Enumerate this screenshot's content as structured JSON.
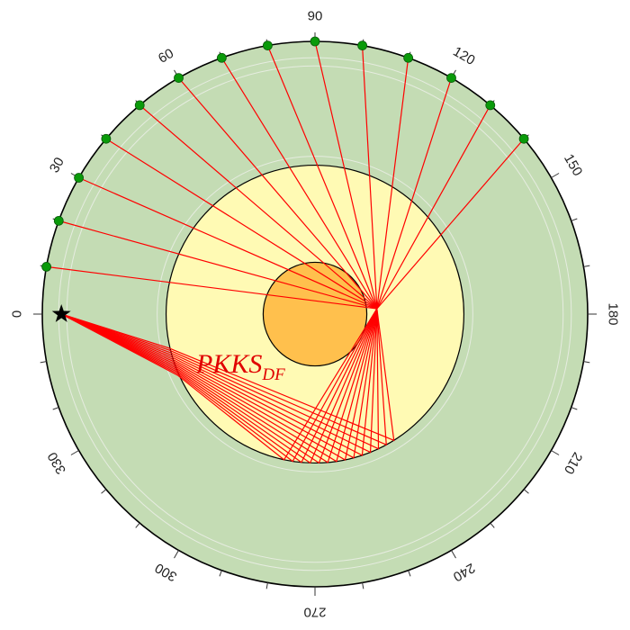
{
  "figure": {
    "phase_name": "PKKS",
    "phase_subscript": "DF",
    "colors": {
      "mantle": "#c4dcb4",
      "outer_core": "#fffab4",
      "inner_core": "#ffc04d",
      "ray": "#ff0000",
      "station": "#0a9a0a",
      "source": "#000000",
      "ring": "#000000",
      "guide_circle": "#e6ece0"
    },
    "icons": {
      "source": "star-icon",
      "station": "circle-icon"
    }
  },
  "chart_data": {
    "type": "polar-ray-diagram",
    "title": "",
    "axis": {
      "tick_labels": [
        "0",
        "30",
        "60",
        "90",
        "120",
        "150",
        "180",
        "210",
        "240",
        "270",
        "300",
        "330"
      ],
      "label_angles_deg": [
        0,
        30,
        60,
        90,
        120,
        150,
        180,
        210,
        240,
        270,
        300,
        330
      ],
      "minor_tick_step_deg": 10
    },
    "source": {
      "angle_deg": 0,
      "depth_fraction_of_radius": 0.07
    },
    "stations_angle_deg": [
      10,
      20,
      30,
      40,
      50,
      60,
      70,
      80,
      90,
      100,
      110,
      120,
      130,
      140
    ],
    "layers_radius_fraction": {
      "outer_core": 0.546,
      "inner_core": 0.19
    }
  }
}
